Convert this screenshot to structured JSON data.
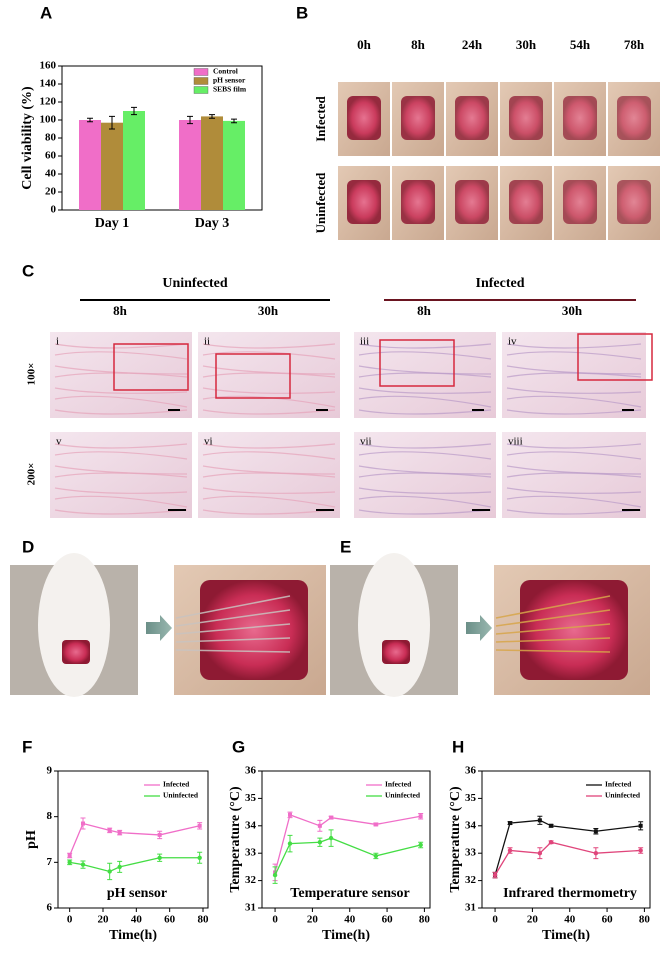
{
  "chart_data": [
    {
      "type": "bar",
      "label": "A",
      "ylabel": "Cell viability (%)",
      "categories": [
        "Day 1",
        "Day 3"
      ],
      "series": [
        {
          "name": "Control",
          "color": "#f06ec8",
          "values": [
            100,
            100
          ],
          "errors": [
            2,
            4
          ]
        },
        {
          "name": "pH sensor",
          "color": "#b08c3a",
          "values": [
            97,
            104
          ],
          "errors": [
            7,
            2
          ]
        },
        {
          "name": "SEBS film",
          "color": "#66ee66",
          "values": [
            110,
            99
          ],
          "errors": [
            4,
            2
          ]
        }
      ],
      "ylim": [
        0,
        160
      ],
      "yticks": [
        0,
        20,
        40,
        60,
        80,
        100,
        120,
        140,
        160
      ],
      "legend": "top-right"
    },
    {
      "type": "line",
      "label": "F",
      "ylabel": "pH",
      "xlabel": "Time(h)",
      "annotation": "pH sensor",
      "x": [
        0,
        8,
        24,
        30,
        54,
        78
      ],
      "series": [
        {
          "name": "Infected",
          "color": "#f06ec8",
          "values": [
            7.15,
            7.85,
            7.7,
            7.65,
            7.6,
            7.8
          ],
          "errors": [
            0.05,
            0.12,
            0.05,
            0.05,
            0.08,
            0.07
          ]
        },
        {
          "name": "Uninfected",
          "color": "#44dd44",
          "values": [
            7.0,
            6.95,
            6.8,
            6.9,
            7.1,
            7.1
          ],
          "errors": [
            0.05,
            0.08,
            0.18,
            0.12,
            0.08,
            0.12
          ]
        }
      ],
      "xlim": [
        -7,
        83
      ],
      "xticks": [
        0,
        20,
        40,
        60,
        80
      ],
      "ylim": [
        6,
        9
      ],
      "yticks": [
        6,
        7,
        8,
        9
      ],
      "legend": "top-right"
    },
    {
      "type": "line",
      "label": "G",
      "ylabel": "Temperature (°C)",
      "xlabel": "Time(h)",
      "annotation": "Temperature sensor",
      "x": [
        0,
        8,
        24,
        30,
        54,
        78
      ],
      "series": [
        {
          "name": "Infected",
          "color": "#f06ec8",
          "values": [
            32.3,
            34.4,
            34.0,
            34.3,
            34.05,
            34.35
          ],
          "errors": [
            0.3,
            0.1,
            0.2,
            0.05,
            0.05,
            0.1
          ]
        },
        {
          "name": "Uninfected",
          "color": "#44dd44",
          "values": [
            32.2,
            33.35,
            33.4,
            33.55,
            32.9,
            33.3
          ],
          "errors": [
            0.3,
            0.3,
            0.15,
            0.3,
            0.1,
            0.1
          ]
        }
      ],
      "xlim": [
        -7,
        83
      ],
      "xticks": [
        0,
        20,
        40,
        60,
        80
      ],
      "ylim": [
        31,
        36
      ],
      "yticks": [
        31,
        32,
        33,
        34,
        35,
        36
      ],
      "legend": "top-right"
    },
    {
      "type": "line",
      "label": "H",
      "ylabel": "Temperature (°C)",
      "xlabel": "Time(h)",
      "annotation": "Infrared thermometry",
      "x": [
        0,
        8,
        24,
        30,
        54,
        78
      ],
      "series": [
        {
          "name": "Infected",
          "color": "#111111",
          "values": [
            32.2,
            34.1,
            34.2,
            34.0,
            33.8,
            34.0
          ],
          "errors": [
            0.1,
            0.05,
            0.15,
            0.05,
            0.1,
            0.15
          ]
        },
        {
          "name": "Uninfected",
          "color": "#e0457b",
          "values": [
            32.2,
            33.1,
            33.0,
            33.4,
            33.0,
            33.1
          ],
          "errors": [
            0.1,
            0.1,
            0.2,
            0.05,
            0.2,
            0.1
          ]
        }
      ],
      "xlim": [
        -7,
        83
      ],
      "xticks": [
        0,
        20,
        40,
        60,
        80
      ],
      "ylim": [
        31,
        36
      ],
      "yticks": [
        31,
        32,
        33,
        34,
        35,
        36
      ],
      "legend": "top-right"
    }
  ],
  "panel_b": {
    "label": "B",
    "times": [
      "0h",
      "8h",
      "24h",
      "30h",
      "54h",
      "78h"
    ],
    "rows": [
      "Infected",
      "Uninfected"
    ]
  },
  "panel_c": {
    "label": "C",
    "groups": [
      {
        "name": "Uninfected",
        "times": [
          "8h",
          "30h"
        ]
      },
      {
        "name": "Infected",
        "times": [
          "8h",
          "30h"
        ]
      }
    ],
    "magnifications": [
      "100×",
      "200×"
    ],
    "images": [
      "i",
      "ii",
      "iii",
      "iv",
      "v",
      "vi",
      "vii",
      "viii"
    ]
  },
  "panel_d": {
    "label": "D"
  },
  "panel_e": {
    "label": "E"
  }
}
